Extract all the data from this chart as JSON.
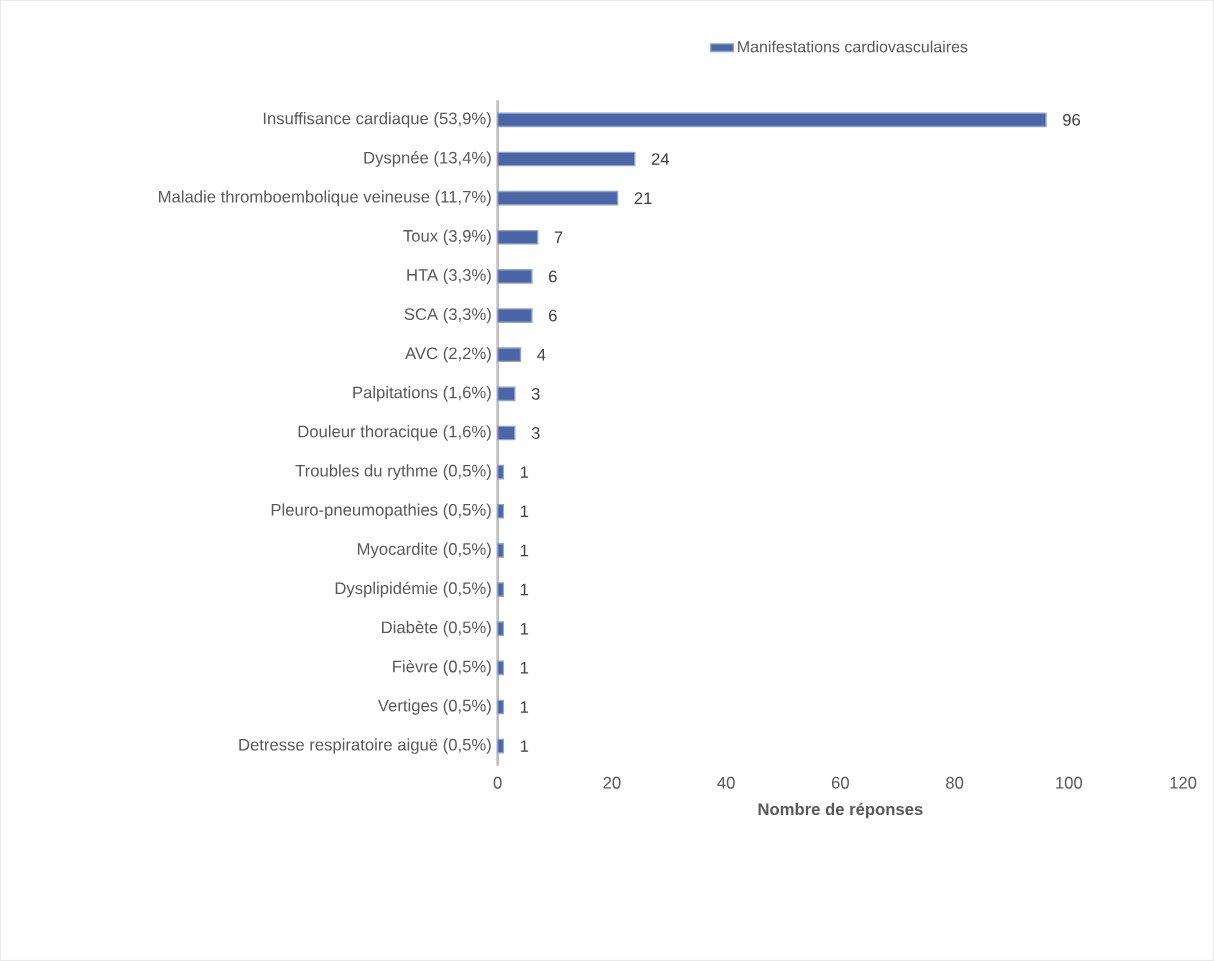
{
  "chart_data": {
    "type": "bar",
    "orientation": "horizontal",
    "categories": [
      "Insuffisance cardiaque (53,9%)",
      "Dyspnée (13,4%)",
      "Maladie thromboembolique veineuse (11,7%)",
      "Toux (3,9%)",
      "HTA (3,3%)",
      "SCA (3,3%)",
      "AVC (2,2%)",
      "Palpitations (1,6%)",
      "Douleur thoracique (1,6%)",
      "Troubles du rythme (0,5%)",
      "Pleuro-pneumopathies (0,5%)",
      "Myocardite (0,5%)",
      "Dysplipidémie (0,5%)",
      "Diabète (0,5%)",
      "Fièvre (0,5%)",
      "Vertiges (0,5%)",
      "Detresse respiratoire aiguë (0,5%)"
    ],
    "series": [
      {
        "name": "Manifestations cardiovasculaires",
        "color": "#4a66a6",
        "values": [
          96,
          24,
          21,
          7,
          6,
          6,
          4,
          3,
          3,
          1,
          1,
          1,
          1,
          1,
          1,
          1,
          1
        ]
      }
    ],
    "xlabel": "Nombre de réponses",
    "xlim": [
      0,
      120
    ],
    "xticks": [
      0,
      20,
      40,
      60,
      80,
      100,
      120
    ],
    "data_labels": true,
    "grid": false,
    "legend": "top"
  }
}
